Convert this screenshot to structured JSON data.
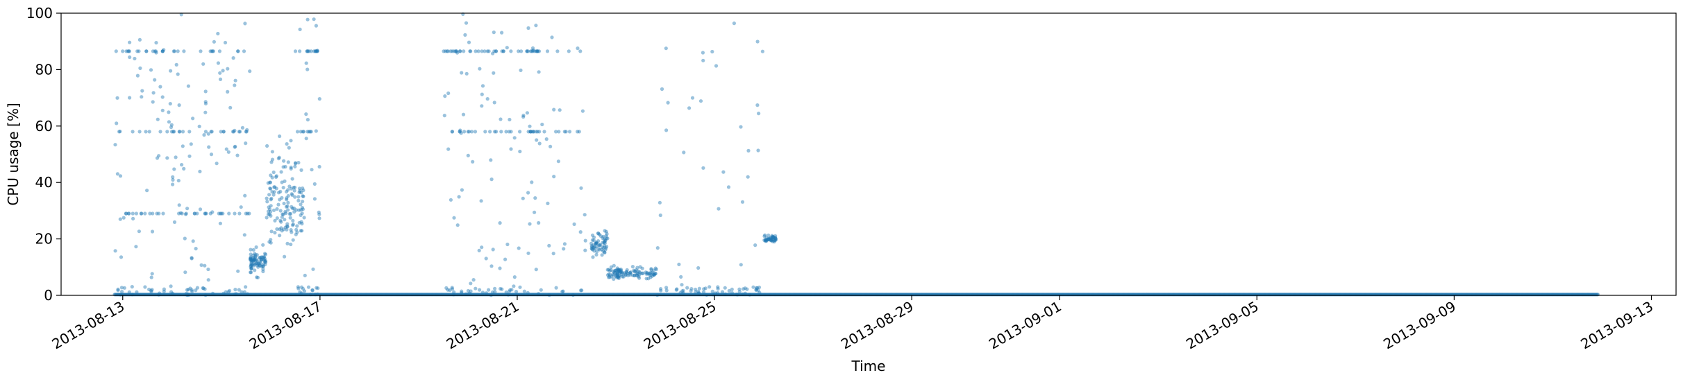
{
  "chart_data": {
    "type": "scatter",
    "title": "",
    "xlabel": "Time",
    "ylabel": "CPU usage [%]",
    "ylim": [
      0,
      100
    ],
    "xlim": [
      "2013-08-11T18:00",
      "2013-09-13T12:00"
    ],
    "grid": false,
    "legend": "none",
    "point_color": "#1f77b4",
    "point_alpha": 0.45,
    "x_ticks": [
      "2013-08-13",
      "2013-08-17",
      "2013-08-21",
      "2013-08-25",
      "2013-08-29",
      "2013-09-01",
      "2013-09-05",
      "2013-09-09",
      "2013-09-13"
    ],
    "y_ticks": [
      0,
      20,
      40,
      60,
      80,
      100
    ],
    "series": [
      {
        "name": "",
        "description_of_pattern": [],
        "points": []
      }
    ],
    "segments": [
      {
        "kind": "baseline",
        "start": "2013-08-12T20:00",
        "end": "2013-09-11T22:00",
        "level": 0.3
      },
      {
        "kind": "scatter",
        "start": "2013-08-12T20:00",
        "end": "2013-08-15T14:00",
        "min": 0,
        "max": 100,
        "n": 260,
        "bands": [
          29,
          58,
          86.5
        ]
      },
      {
        "kind": "cluster",
        "start": "2013-08-15T14:00",
        "end": "2013-08-15T22:00",
        "center": 12,
        "spread": 3,
        "n": 80
      },
      {
        "kind": "cluster",
        "start": "2013-08-15T22:00",
        "end": "2013-08-16T16:00",
        "center": 33,
        "spread": 12,
        "n": 150
      },
      {
        "kind": "scatter",
        "start": "2013-08-16T12:00",
        "end": "2013-08-17T00:00",
        "min": 0,
        "max": 100,
        "n": 60,
        "bands": [
          58,
          86.5
        ]
      },
      {
        "kind": "scatter",
        "start": "2013-08-19T12:00",
        "end": "2013-08-21T12:00",
        "min": 0,
        "max": 100,
        "n": 180,
        "bands": [
          58,
          86.5
        ]
      },
      {
        "kind": "scatter",
        "start": "2013-08-21T12:00",
        "end": "2013-08-22T10:00",
        "min": 0,
        "max": 100,
        "n": 40,
        "bands": [
          58,
          86.5
        ]
      },
      {
        "kind": "cluster",
        "start": "2013-08-22T12:00",
        "end": "2013-08-22T20:00",
        "center": 18,
        "spread": 3,
        "n": 60
      },
      {
        "kind": "cluster",
        "start": "2013-08-22T20:00",
        "end": "2013-08-23T20:00",
        "center": 8,
        "spread": 1.5,
        "n": 110
      },
      {
        "kind": "scatter",
        "start": "2013-08-23T20:00",
        "end": "2013-08-26T00:00",
        "min": 0,
        "max": 100,
        "n": 90,
        "bands": []
      },
      {
        "kind": "cluster",
        "start": "2013-08-26T00:00",
        "end": "2013-08-26T06:00",
        "center": 20,
        "spread": 1,
        "n": 40
      }
    ]
  }
}
